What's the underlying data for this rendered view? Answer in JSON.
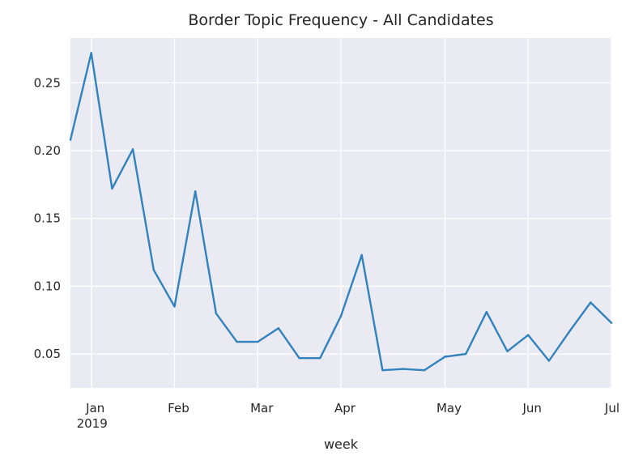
{
  "chart_data": {
    "type": "line",
    "title": "Border Topic Frequency - All Candidates",
    "xlabel": "week",
    "ylabel": "",
    "grid": true,
    "legend": "none",
    "colors": {
      "background": "#EAEAF2",
      "grid": "#FFFFFF",
      "line": "#3182BD"
    },
    "xlim": [
      "2018-12-30",
      "2019-06-30"
    ],
    "ylim": [
      0.025,
      0.283
    ],
    "x_ticks": [
      {
        "date": "2019-01-06",
        "label": "Jan",
        "sublabel": "2019"
      },
      {
        "date": "2019-02-03",
        "label": "Feb"
      },
      {
        "date": "2019-03-03",
        "label": "Mar"
      },
      {
        "date": "2019-03-31",
        "label": "Apr"
      },
      {
        "date": "2019-05-05",
        "label": "May"
      },
      {
        "date": "2019-06-02",
        "label": "Jun"
      },
      {
        "date": "2019-06-30",
        "label": "Jul"
      }
    ],
    "y_ticks": [
      {
        "value": 0.05,
        "label": "0.05"
      },
      {
        "value": 0.1,
        "label": "0.10"
      },
      {
        "value": 0.15,
        "label": "0.15"
      },
      {
        "value": 0.2,
        "label": "0.20"
      },
      {
        "value": 0.25,
        "label": "0.25"
      }
    ],
    "series": [
      {
        "x": [
          "2018-12-30",
          "2019-01-06",
          "2019-01-13",
          "2019-01-20",
          "2019-01-27",
          "2019-02-03",
          "2019-02-10",
          "2019-02-17",
          "2019-02-24",
          "2019-03-03",
          "2019-03-10",
          "2019-03-17",
          "2019-03-24",
          "2019-03-31",
          "2019-04-07",
          "2019-04-14",
          "2019-04-21",
          "2019-04-28",
          "2019-05-05",
          "2019-05-12",
          "2019-05-19",
          "2019-05-26",
          "2019-06-02",
          "2019-06-09",
          "2019-06-16",
          "2019-06-23",
          "2019-06-30"
        ],
        "y": [
          0.208,
          0.272,
          0.172,
          0.201,
          0.112,
          0.085,
          0.17,
          0.08,
          0.059,
          0.059,
          0.069,
          0.047,
          0.047,
          0.078,
          0.123,
          0.038,
          0.039,
          0.038,
          0.048,
          0.05,
          0.081,
          0.052,
          0.064,
          0.045,
          0.067,
          0.088,
          0.073
        ]
      }
    ]
  }
}
